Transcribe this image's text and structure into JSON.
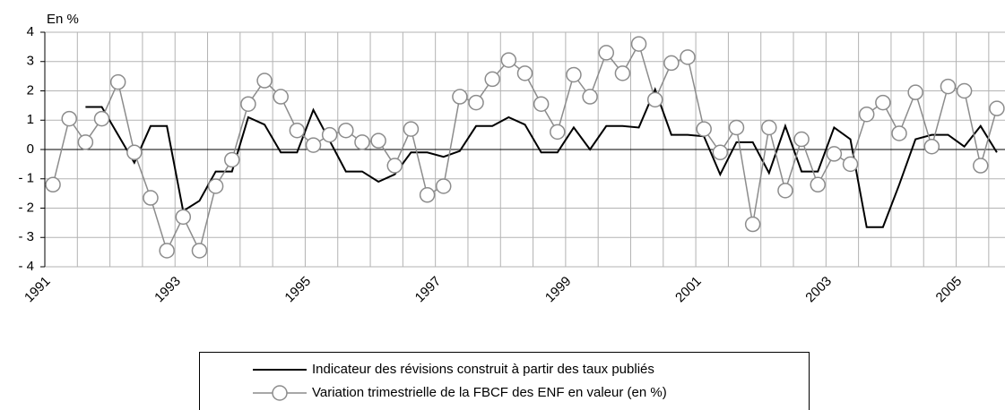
{
  "chart_data": {
    "type": "line",
    "y_label": "En %",
    "x": [
      1991.125,
      1991.375,
      1991.625,
      1991.875,
      1992.125,
      1992.375,
      1992.625,
      1992.875,
      1993.125,
      1993.375,
      1993.625,
      1993.875,
      1994.125,
      1994.375,
      1994.625,
      1994.875,
      1995.125,
      1995.375,
      1995.625,
      1995.875,
      1996.125,
      1996.375,
      1996.625,
      1996.875,
      1997.125,
      1997.375,
      1997.625,
      1997.875,
      1998.125,
      1998.375,
      1998.625,
      1998.875,
      1999.125,
      1999.375,
      1999.625,
      1999.875,
      2000.125,
      2000.375,
      2000.625,
      2000.875,
      2001.125,
      2001.375,
      2001.625,
      2001.875,
      2002.125,
      2002.375,
      2002.625,
      2002.875,
      2003.125,
      2003.375,
      2003.625,
      2003.875,
      2004.125,
      2004.375,
      2004.625,
      2004.875,
      2005.125,
      2005.375,
      2005.625
    ],
    "series": [
      {
        "name": "Indicateur des révisions construit à partir des taux publiés",
        "color": "#000000",
        "marker": false,
        "values": [
          null,
          null,
          1.45,
          1.45,
          0.5,
          -0.45,
          0.8,
          0.8,
          -2.1,
          -1.75,
          -0.75,
          -0.75,
          1.1,
          0.85,
          -0.1,
          -0.1,
          1.35,
          0.3,
          -0.75,
          -0.75,
          -1.1,
          -0.85,
          -0.1,
          -0.1,
          -0.25,
          -0.05,
          0.8,
          0.8,
          1.1,
          0.85,
          -0.1,
          -0.1,
          0.75,
          0,
          0.8,
          0.8,
          0.75,
          2.05,
          0.5,
          0.5,
          0.45,
          -0.85,
          0.25,
          0.25,
          -0.8,
          0.8,
          -0.75,
          -0.75,
          0.75,
          0.35,
          -2.65,
          -2.65,
          -1.2,
          0.35,
          0.5,
          0.5,
          0.1,
          0.8,
          -0.1
        ]
      },
      {
        "name": "Variation trimestrielle de la FBCF des ENF en valeur (en %)",
        "color": "#8c8c8c",
        "marker": true,
        "values": [
          -1.2,
          1.05,
          0.25,
          1.05,
          2.3,
          -0.1,
          -1.65,
          -3.45,
          -2.3,
          -3.45,
          -1.25,
          -0.35,
          1.55,
          2.35,
          1.8,
          0.65,
          0.15,
          0.5,
          0.65,
          0.25,
          0.3,
          -0.55,
          0.7,
          -1.55,
          -1.25,
          1.8,
          1.6,
          2.4,
          3.05,
          2.6,
          1.55,
          0.6,
          2.55,
          1.8,
          3.3,
          2.6,
          3.6,
          1.7,
          2.95,
          3.15,
          0.7,
          -0.1,
          0.75,
          -2.55,
          0.75,
          -1.4,
          0.35,
          -1.2,
          -0.15,
          -0.5,
          1.2,
          1.6,
          0.55,
          1.95,
          0.1,
          2.15,
          2.0,
          -0.55,
          1.4
        ]
      }
    ],
    "xlim": [
      1991,
      2005.75
    ],
    "xticks": [
      1991,
      1993,
      1995,
      1997,
      1999,
      2001,
      2003,
      2005
    ],
    "x_minor_ticks": [
      1991.5,
      1992,
      1992.5,
      1993.5,
      1994,
      1994.5,
      1995.5,
      1996,
      1996.5,
      1997.5,
      1998,
      1998.5,
      1999.5,
      2000,
      2000.5,
      2001.5,
      2002,
      2002.5,
      2003.5,
      2004,
      2004.5,
      2005.5
    ],
    "ylim": [
      -4,
      4
    ],
    "yticks": [
      {
        "value": -4,
        "label": "- 4"
      },
      {
        "value": -3,
        "label": "- 3"
      },
      {
        "value": -2,
        "label": "- 2"
      },
      {
        "value": -1,
        "label": "- 1"
      },
      0,
      1,
      2,
      3,
      4
    ],
    "grid": true,
    "legend": "bottom"
  }
}
